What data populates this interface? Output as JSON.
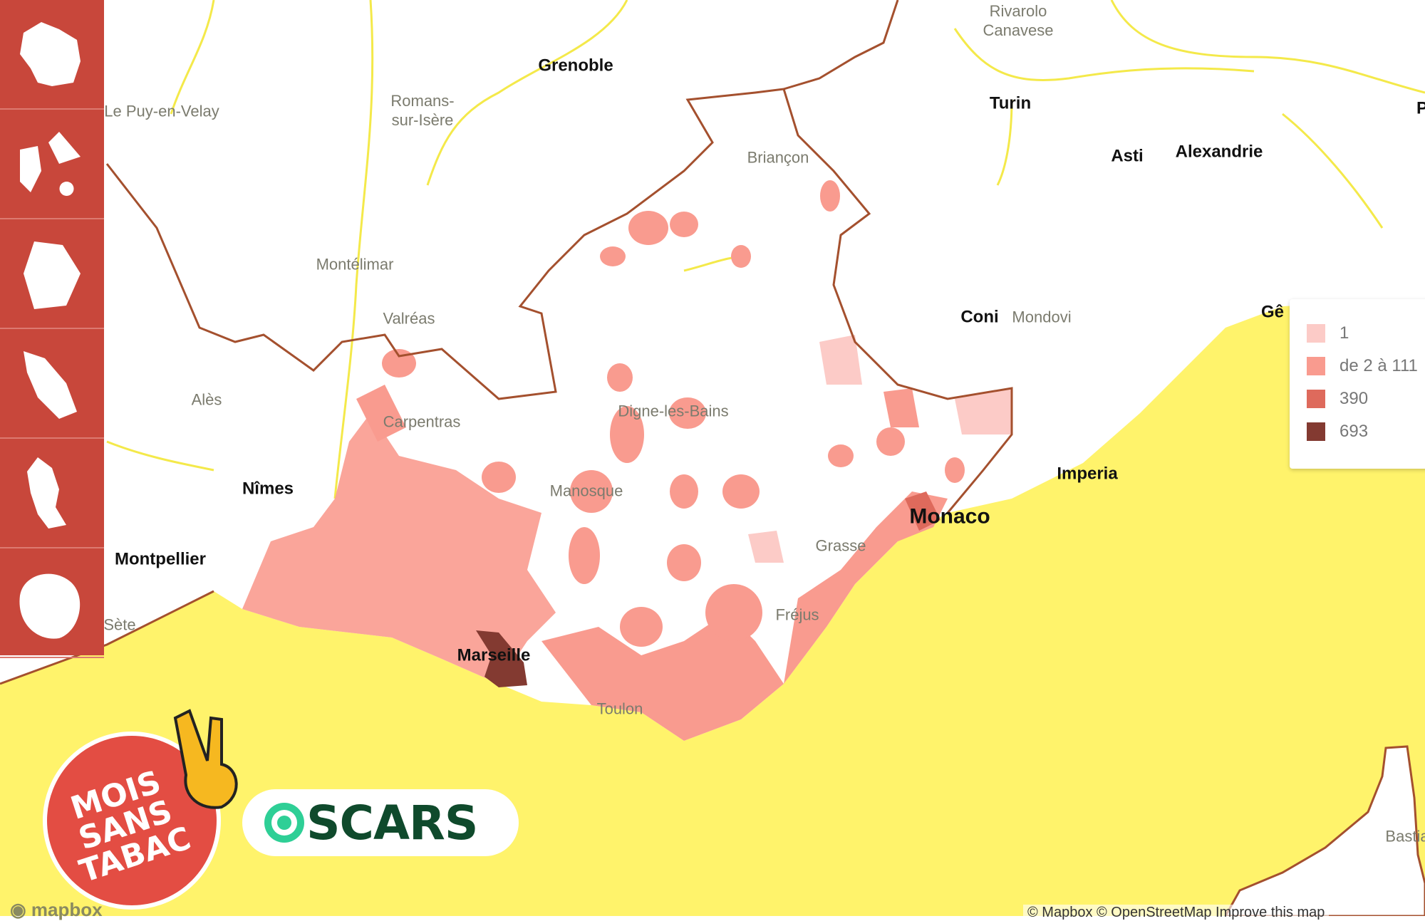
{
  "map": {
    "colors": {
      "sea": "#fff36b",
      "land": "#ffffff",
      "border": "#a4502e",
      "roads": "#f4e94a"
    },
    "labels": [
      {
        "id": "grenoble",
        "text": "Grenoble",
        "major": true
      },
      {
        "id": "rivarolo",
        "text": "Rivarolo\nCanavese",
        "major": false
      },
      {
        "id": "turin",
        "text": "Turin",
        "major": true
      },
      {
        "id": "le-puy",
        "text": "Le Puy-en-Velay",
        "major": false
      },
      {
        "id": "romans",
        "text": "Romans-\nsur-Isère",
        "major": false
      },
      {
        "id": "briancon",
        "text": "Briançon",
        "major": false
      },
      {
        "id": "asti",
        "text": "Asti",
        "major": true
      },
      {
        "id": "alexandrie",
        "text": "Alexandrie",
        "major": true
      },
      {
        "id": "montelimar",
        "text": "Montélimar",
        "major": false
      },
      {
        "id": "valreas",
        "text": "Valréas",
        "major": false
      },
      {
        "id": "coni",
        "text": "Coni",
        "major": true
      },
      {
        "id": "mondovi",
        "text": "Mondovi",
        "major": false
      },
      {
        "id": "genes",
        "text": "Gê",
        "major": true
      },
      {
        "id": "ales",
        "text": "Alès",
        "major": false
      },
      {
        "id": "carpentras",
        "text": "Carpentras",
        "major": false
      },
      {
        "id": "digne",
        "text": "Digne-les-Bains",
        "major": false
      },
      {
        "id": "nimes",
        "text": "Nîmes",
        "major": true
      },
      {
        "id": "manosque",
        "text": "Manosque",
        "major": false
      },
      {
        "id": "imperia",
        "text": "Imperia",
        "major": true
      },
      {
        "id": "monaco",
        "text": "Monaco",
        "major": true
      },
      {
        "id": "montpellier",
        "text": "Montpellier",
        "major": true
      },
      {
        "id": "grasse",
        "text": "Grasse",
        "major": false
      },
      {
        "id": "sete",
        "text": "Sète",
        "major": false
      },
      {
        "id": "frejus",
        "text": "Fréjus",
        "major": false
      },
      {
        "id": "marseille",
        "text": "Marseille",
        "major": true
      },
      {
        "id": "toulon",
        "text": "Toulon",
        "major": false
      },
      {
        "id": "bastia",
        "text": "Bastia",
        "major": false
      },
      {
        "id": "p-edge",
        "text": "P",
        "major": true
      }
    ]
  },
  "sidebar": {
    "items": [
      {
        "name": "france-metropolitaine",
        "icon": "france-shape-icon"
      },
      {
        "name": "guadeloupe",
        "icon": "guadeloupe-shape-icon"
      },
      {
        "name": "guyane",
        "icon": "guyane-shape-icon"
      },
      {
        "name": "martinique",
        "icon": "martinique-shape-icon"
      },
      {
        "name": "mayotte",
        "icon": "mayotte-shape-icon"
      },
      {
        "name": "la-reunion",
        "icon": "reunion-shape-icon"
      }
    ]
  },
  "legend": {
    "items": [
      {
        "label": "1",
        "color": "#fccbc7"
      },
      {
        "label": "de 2 à 111",
        "color": "#f99b8f"
      },
      {
        "label": "390",
        "color": "#de6a5c"
      },
      {
        "label": "693",
        "color": "#833a31"
      }
    ]
  },
  "logos": {
    "mois_sans_tabac": "MOIS\nSANS\nTABAC",
    "oscars": "SCARS",
    "mapbox": "mapbox"
  },
  "attribution": "© Mapbox © OpenStreetMap Improve this map"
}
